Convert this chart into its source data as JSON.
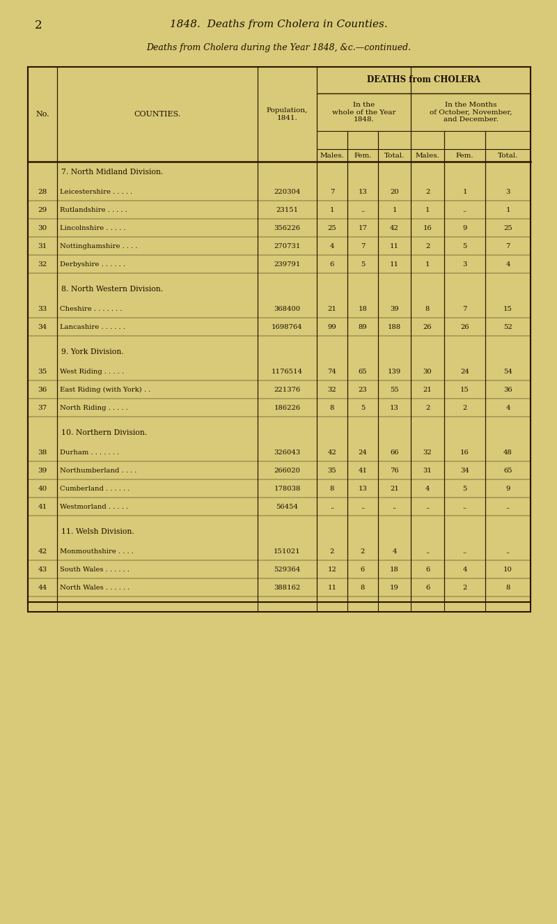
{
  "page_num": "2",
  "header_italic": "1848.  Deaths from Cholera in Counties.",
  "subtitle_italic": "Deaths from Cholera during the Year 1848, &c.—continued.",
  "bg_color": "#d8ca78",
  "text_color": "#1a0e00",
  "divisions": [
    {
      "div_no": "7",
      "div_name": "North Midland Division.",
      "rows": [
        {
          "no": "28",
          "county": "Leicestershire . . . . .",
          "pop": "220304",
          "m1": "7",
          "f1": "13",
          "t1": "20",
          "m2": "2",
          "f2": "1",
          "t2": "3"
        },
        {
          "no": "29",
          "county": "Rutlandshire . . . . .",
          "pop": "23151",
          "m1": "1",
          "f1": "..",
          "t1": "1",
          "m2": "1",
          "f2": "..",
          "t2": "1"
        },
        {
          "no": "30",
          "county": "Lincolnshire . . . . .",
          "pop": "356226",
          "m1": "25",
          "f1": "17",
          "t1": "42",
          "m2": "16",
          "f2": "9",
          "t2": "25"
        },
        {
          "no": "31",
          "county": "Nottinghamshire . . . .",
          "pop": "270731",
          "m1": "4",
          "f1": "7",
          "t1": "11",
          "m2": "2",
          "f2": "5",
          "t2": "7"
        },
        {
          "no": "32",
          "county": "Derbyshire . . . . . .",
          "pop": "239791",
          "m1": "6",
          "f1": "5",
          "t1": "11",
          "m2": "1",
          "f2": "3",
          "t2": "4"
        }
      ]
    },
    {
      "div_no": "8",
      "div_name": "North Western Division.",
      "rows": [
        {
          "no": "33",
          "county": "Cheshire . . . . . . .",
          "pop": "368400",
          "m1": "21",
          "f1": "18",
          "t1": "39",
          "m2": "8",
          "f2": "7",
          "t2": "15"
        },
        {
          "no": "34",
          "county": "Lancashire . . . . . .",
          "pop": "1698764",
          "m1": "99",
          "f1": "89",
          "t1": "188",
          "m2": "26",
          "f2": "26",
          "t2": "52"
        }
      ]
    },
    {
      "div_no": "9",
      "div_name": "York Division.",
      "rows": [
        {
          "no": "35",
          "county": "West Riding . . . . .",
          "pop": "1176514",
          "m1": "74",
          "f1": "65",
          "t1": "139",
          "m2": "30",
          "f2": "24",
          "t2": "54"
        },
        {
          "no": "36",
          "county": "East Riding (with York) . .",
          "pop": "221376",
          "m1": "32",
          "f1": "23",
          "t1": "55",
          "m2": "21",
          "f2": "15",
          "t2": "36"
        },
        {
          "no": "37",
          "county": "North Riding . . . . .",
          "pop": "186226",
          "m1": "8",
          "f1": "5",
          "t1": "13",
          "m2": "2",
          "f2": "2",
          "t2": "4"
        }
      ]
    },
    {
      "div_no": "10",
      "div_name": "Northern Division.",
      "rows": [
        {
          "no": "38",
          "county": "Durham . . . . . . .",
          "pop": "326043",
          "m1": "42",
          "f1": "24",
          "t1": "66",
          "m2": "32",
          "f2": "16",
          "t2": "48"
        },
        {
          "no": "39",
          "county": "Northumberland . . . .",
          "pop": "266020",
          "m1": "35",
          "f1": "41",
          "t1": "76",
          "m2": "31",
          "f2": "34",
          "t2": "65"
        },
        {
          "no": "40",
          "county": "Cumberland . . . . . .",
          "pop": "178038",
          "m1": "8",
          "f1": "13",
          "t1": "21",
          "m2": "4",
          "f2": "5",
          "t2": "9"
        },
        {
          "no": "41",
          "county": "Westmorland . . . . .",
          "pop": "56454",
          "m1": "..",
          "f1": "..",
          "t1": "..",
          "m2": "..",
          "f2": "..",
          "t2": ".."
        }
      ]
    },
    {
      "div_no": "11",
      "div_name": "Welsh Division.",
      "rows": [
        {
          "no": "42",
          "county": "Monmouthshire . . . .",
          "pop": "151021",
          "m1": "2",
          "f1": "2",
          "t1": "4",
          "m2": "..",
          "f2": "..",
          "t2": ".."
        },
        {
          "no": "43",
          "county": "South Wales . . . . . .",
          "pop": "529364",
          "m1": "12",
          "f1": "6",
          "t1": "18",
          "m2": "6",
          "f2": "4",
          "t2": "10"
        },
        {
          "no": "44",
          "county": "North Wales . . . . . .",
          "pop": "388162",
          "m1": "11",
          "f1": "8",
          "t1": "19",
          "m2": "6",
          "f2": "2",
          "t2": "8"
        }
      ]
    }
  ]
}
